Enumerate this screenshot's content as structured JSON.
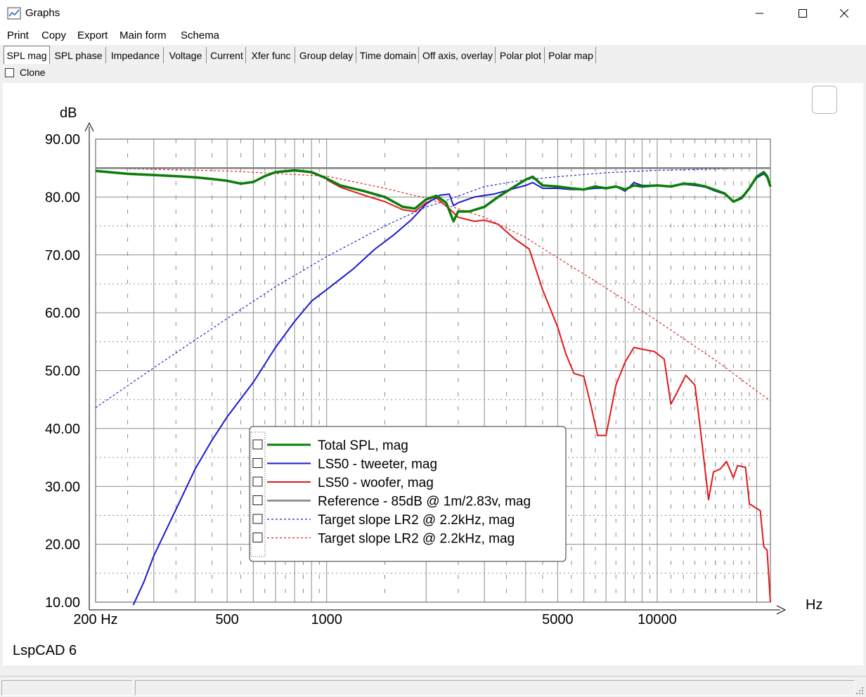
{
  "window": {
    "title": "Graphs"
  },
  "menu": [
    "Print",
    "Copy",
    "Export",
    "Main form",
    "Schema"
  ],
  "tabs": [
    "SPL mag",
    "SPL phase",
    "Impedance",
    "Voltage",
    "Current",
    "Xfer func",
    "Group delay",
    "Time domain",
    "Off axis, overlay",
    "Polar plot",
    "Polar map"
  ],
  "active_tab": "SPL mag",
  "clone": {
    "label": "Clone",
    "checked": false
  },
  "watermark": "LspCAD 6",
  "chart_data": {
    "type": "line",
    "ylabel": "dB",
    "xlabel": "Hz",
    "x_scale": "log",
    "xlim": [
      200,
      22000
    ],
    "ylim": [
      10,
      90
    ],
    "y_ticks": [
      10,
      20,
      30,
      40,
      50,
      60,
      70,
      80,
      90
    ],
    "y_tick_labels": [
      "10.00",
      "20.00",
      "30.00",
      "40.00",
      "50.00",
      "60.00",
      "70.00",
      "80.00",
      "90.00"
    ],
    "x_tick_labels": [
      {
        "value": 200,
        "label": "200 Hz"
      },
      {
        "value": 500,
        "label": "500"
      },
      {
        "value": 1000,
        "label": "1000"
      },
      {
        "value": 5000,
        "label": "5000"
      },
      {
        "value": 10000,
        "label": "10000"
      }
    ],
    "x_grid_major": [
      200,
      300,
      400,
      500,
      600,
      700,
      800,
      900,
      1000,
      2000,
      3000,
      4000,
      5000,
      6000,
      7000,
      8000,
      9000,
      10000,
      20000
    ],
    "grid": true,
    "legend": "center-left",
    "series": [
      {
        "name": "Total SPL, mag",
        "color": "#0a7d0a",
        "width": 3.5,
        "dash": "",
        "points": [
          [
            200,
            84.5
          ],
          [
            250,
            84
          ],
          [
            300,
            83.8
          ],
          [
            350,
            83.6
          ],
          [
            400,
            83.4
          ],
          [
            450,
            83.1
          ],
          [
            500,
            82.8
          ],
          [
            550,
            82.3
          ],
          [
            600,
            82.6
          ],
          [
            650,
            83.6
          ],
          [
            700,
            84.3
          ],
          [
            800,
            84.6
          ],
          [
            900,
            84.3
          ],
          [
            1000,
            83.2
          ],
          [
            1100,
            82.0
          ],
          [
            1300,
            81.0
          ],
          [
            1500,
            80.0
          ],
          [
            1700,
            78.3
          ],
          [
            1850,
            78.0
          ],
          [
            2000,
            79.6
          ],
          [
            2150,
            80.2
          ],
          [
            2300,
            79.0
          ],
          [
            2420,
            75.8
          ],
          [
            2500,
            77.5
          ],
          [
            2700,
            77.5
          ],
          [
            3000,
            78.3
          ],
          [
            3300,
            80.0
          ],
          [
            3700,
            81.8
          ],
          [
            4000,
            83.0
          ],
          [
            4200,
            83.5
          ],
          [
            4500,
            82.0
          ],
          [
            5000,
            81.8
          ],
          [
            5500,
            81.5
          ],
          [
            6000,
            81.3
          ],
          [
            6500,
            81.8
          ],
          [
            7000,
            81.5
          ],
          [
            7500,
            81.8
          ],
          [
            8000,
            81.3
          ],
          [
            8500,
            82.0
          ],
          [
            9000,
            81.8
          ],
          [
            10000,
            82.0
          ],
          [
            11000,
            81.8
          ],
          [
            12000,
            82.3
          ],
          [
            13000,
            82.2
          ],
          [
            14000,
            81.8
          ],
          [
            15000,
            81.2
          ],
          [
            16000,
            80.6
          ],
          [
            17000,
            79.2
          ],
          [
            18000,
            79.8
          ],
          [
            19000,
            81.5
          ],
          [
            20000,
            83.5
          ],
          [
            21000,
            84.3
          ],
          [
            21500,
            83.6
          ],
          [
            22000,
            81.8
          ]
        ]
      },
      {
        "name": "LS50 - tweeter, mag",
        "color": "#1a1ad0",
        "width": 2,
        "dash": "",
        "points": [
          [
            260,
            9.5
          ],
          [
            280,
            13.5
          ],
          [
            300,
            18
          ],
          [
            350,
            26
          ],
          [
            400,
            33
          ],
          [
            450,
            38
          ],
          [
            500,
            42
          ],
          [
            600,
            48
          ],
          [
            700,
            54
          ],
          [
            800,
            58.5
          ],
          [
            900,
            62
          ],
          [
            1000,
            64
          ],
          [
            1200,
            67.5
          ],
          [
            1400,
            71
          ],
          [
            1600,
            73.5
          ],
          [
            1800,
            76
          ],
          [
            2000,
            78.8
          ],
          [
            2200,
            80.3
          ],
          [
            2350,
            80.5
          ],
          [
            2420,
            78.5
          ],
          [
            2500,
            79
          ],
          [
            2800,
            80
          ],
          [
            3200,
            80.5
          ],
          [
            3600,
            81.3
          ],
          [
            4000,
            82.0
          ],
          [
            4200,
            82.5
          ],
          [
            4500,
            81.5
          ],
          [
            5000,
            81.5
          ],
          [
            5500,
            81.3
          ],
          [
            6000,
            81.3
          ],
          [
            6500,
            81.5
          ],
          [
            7000,
            81.5
          ],
          [
            7500,
            81.8
          ],
          [
            8000,
            81.0
          ],
          [
            8500,
            82.5
          ],
          [
            9000,
            82.0
          ],
          [
            10000,
            82.0
          ],
          [
            11000,
            81.8
          ],
          [
            12000,
            82.2
          ],
          [
            13000,
            82.0
          ],
          [
            14000,
            81.7
          ],
          [
            15000,
            81.0
          ],
          [
            16000,
            80.5
          ],
          [
            17000,
            79.2
          ],
          [
            18000,
            80.0
          ],
          [
            19000,
            81.5
          ],
          [
            20000,
            83.3
          ],
          [
            21000,
            84.0
          ],
          [
            21500,
            83.4
          ],
          [
            22000,
            81.8
          ]
        ]
      },
      {
        "name": "LS50 - woofer, mag",
        "color": "#e01a1a",
        "width": 2,
        "dash": "",
        "points": [
          [
            1000,
            83.0
          ],
          [
            1100,
            81.7
          ],
          [
            1300,
            80.3
          ],
          [
            1500,
            79.2
          ],
          [
            1700,
            77.8
          ],
          [
            1850,
            77.5
          ],
          [
            2000,
            79.0
          ],
          [
            2150,
            79.8
          ],
          [
            2350,
            78.0
          ],
          [
            2500,
            76.5
          ],
          [
            2800,
            75.8
          ],
          [
            3000,
            76.0
          ],
          [
            3300,
            75.3
          ],
          [
            3700,
            72.8
          ],
          [
            4100,
            71.0
          ],
          [
            4500,
            64.0
          ],
          [
            5000,
            57.5
          ],
          [
            5300,
            52.8
          ],
          [
            5600,
            49.5
          ],
          [
            6000,
            49.0
          ],
          [
            6300,
            44.0
          ],
          [
            6600,
            38.8
          ],
          [
            7000,
            38.8
          ],
          [
            7500,
            47.5
          ],
          [
            8000,
            51.5
          ],
          [
            8500,
            54.0
          ],
          [
            9000,
            53.7
          ],
          [
            9800,
            53.3
          ],
          [
            10500,
            52.0
          ],
          [
            11000,
            44.2
          ],
          [
            11500,
            46.3
          ],
          [
            12200,
            49.2
          ],
          [
            13000,
            47.5
          ],
          [
            13500,
            40.0
          ],
          [
            14300,
            27.7
          ],
          [
            14800,
            32.5
          ],
          [
            15500,
            33.0
          ],
          [
            16200,
            34.3
          ],
          [
            17000,
            31.5
          ],
          [
            17500,
            33.6
          ],
          [
            18500,
            33.3
          ],
          [
            19000,
            27.0
          ],
          [
            20000,
            26.2
          ],
          [
            20500,
            25.8
          ],
          [
            21000,
            19.6
          ],
          [
            21500,
            19.0
          ],
          [
            22000,
            10.0
          ]
        ]
      },
      {
        "name": "Reference - 85dB @ 1m/2.83v, mag",
        "color": "#808080",
        "width": 2.5,
        "dash": "",
        "points": [
          [
            200,
            85
          ],
          [
            22000,
            85
          ]
        ]
      },
      {
        "name": "Target slope LR2 @ 2.2kHz, mag",
        "color": "#2222cc",
        "width": 1.2,
        "dash": "3,3",
        "points": [
          [
            200,
            43.6
          ],
          [
            300,
            50.5
          ],
          [
            400,
            55.3
          ],
          [
            500,
            59.0
          ],
          [
            700,
            64.5
          ],
          [
            1000,
            69.7
          ],
          [
            1500,
            75.0
          ],
          [
            2000,
            78.3
          ],
          [
            2200,
            79.0
          ],
          [
            3000,
            81.8
          ],
          [
            4000,
            83.0
          ],
          [
            5000,
            83.5
          ],
          [
            7000,
            84.2
          ],
          [
            10000,
            84.6
          ],
          [
            20000,
            85.0
          ],
          [
            22000,
            85.0
          ]
        ]
      },
      {
        "name": "Target slope LR2 @ 2.2kHz, mag",
        "color": "#e02020",
        "width": 1.2,
        "dash": "3,3",
        "points": [
          [
            200,
            85.0
          ],
          [
            500,
            84.5
          ],
          [
            1000,
            83.6
          ],
          [
            1500,
            81.5
          ],
          [
            2000,
            79.8
          ],
          [
            2200,
            79.0
          ],
          [
            3000,
            76.5
          ],
          [
            4000,
            73.0
          ],
          [
            5000,
            69.5
          ],
          [
            7000,
            64.3
          ],
          [
            10000,
            58.6
          ],
          [
            15000,
            51.8
          ],
          [
            20000,
            46.5
          ],
          [
            22000,
            44.8
          ]
        ]
      }
    ]
  }
}
